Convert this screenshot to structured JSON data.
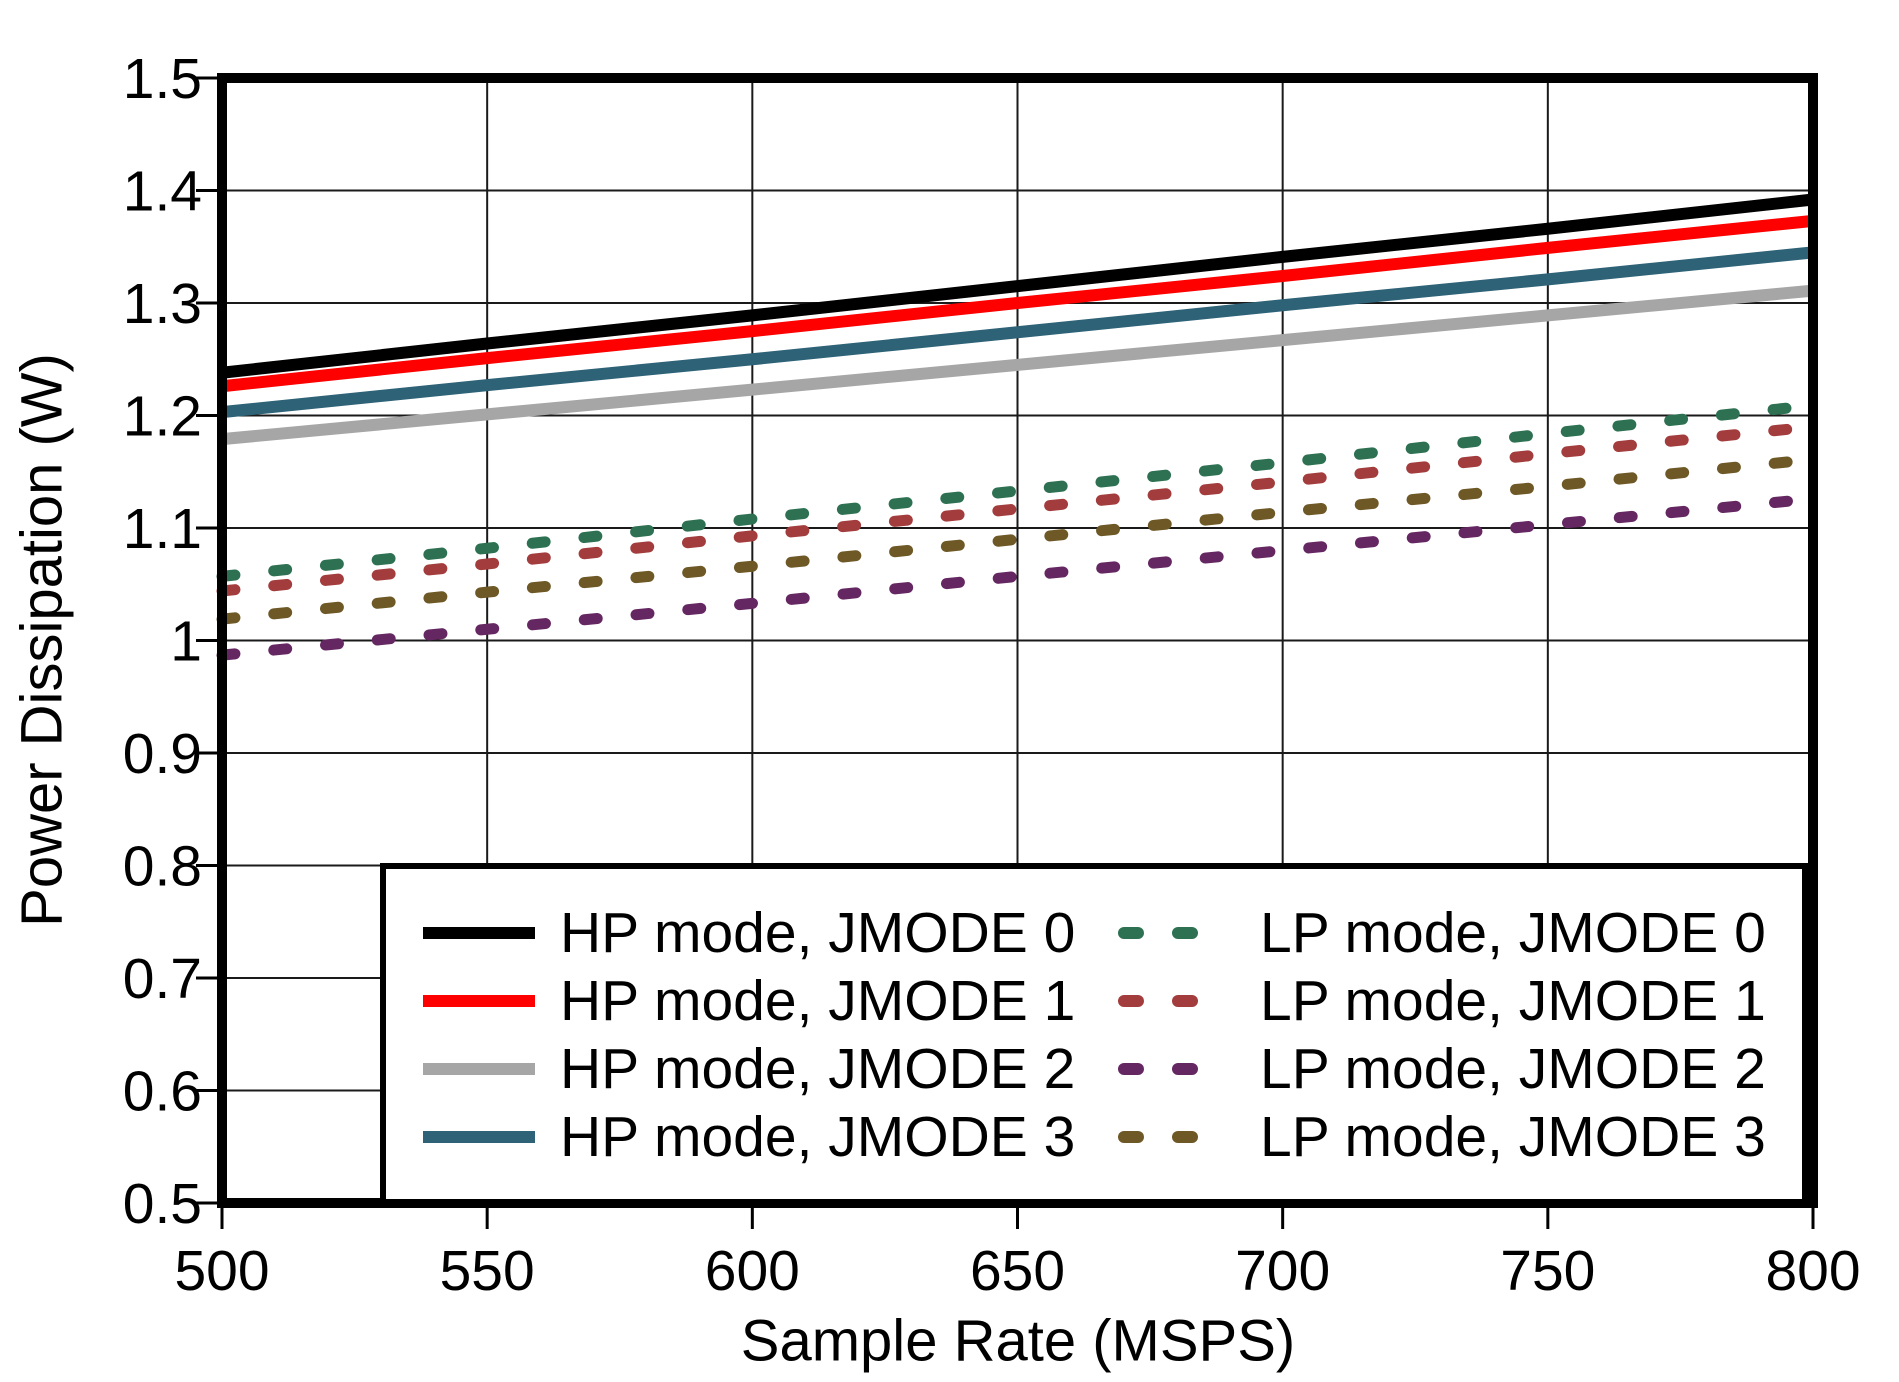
{
  "chart_data": {
    "type": "line",
    "title": "",
    "xlabel": "Sample Rate (MSPS)",
    "ylabel": "Power Dissipation (W)",
    "xlim": [
      500,
      800
    ],
    "ylim": [
      0.5,
      1.5
    ],
    "grid": "on",
    "grid_color": "#1a1a1a",
    "axis_color": "#000000",
    "legend_position": "inside-bottom",
    "x_ticks": [
      500,
      550,
      600,
      650,
      700,
      750,
      800
    ],
    "x_tick_labels": [
      "500",
      "550",
      "600",
      "650",
      "700",
      "750",
      "800"
    ],
    "y_ticks": [
      1.5,
      1.4,
      1.3,
      1.2,
      1.1,
      1.0,
      0.9,
      0.8,
      0.7,
      0.6,
      0.5
    ],
    "y_tick_labels": [
      "1.5",
      "1.4",
      "1.3",
      "1.2",
      "1.1",
      "1",
      "0.9",
      "0.8",
      "0.7",
      "0.6",
      "0.5"
    ],
    "x": [
      500,
      550,
      600,
      650,
      700,
      750,
      800
    ],
    "series": [
      {
        "name": "HP mode, JMODE 0",
        "color": "#000000",
        "style": "solid",
        "values": [
          1.238,
          1.264,
          1.289,
          1.315,
          1.341,
          1.366,
          1.392
        ]
      },
      {
        "name": "HP mode, JMODE 1",
        "color": "#ff0000",
        "style": "solid",
        "values": [
          1.226,
          1.251,
          1.275,
          1.3,
          1.324,
          1.349,
          1.373
        ]
      },
      {
        "name": "HP mode, JMODE 2",
        "color": "#a6a6a6",
        "style": "solid",
        "values": [
          1.179,
          1.201,
          1.223,
          1.245,
          1.267,
          1.289,
          1.311
        ]
      },
      {
        "name": "HP mode, JMODE 3",
        "color": "#2d6277",
        "style": "solid",
        "values": [
          1.203,
          1.227,
          1.25,
          1.274,
          1.298,
          1.321,
          1.345
        ]
      },
      {
        "name": "LP mode, JMODE 0",
        "color": "#2d7152",
        "style": "dashed",
        "values": [
          1.057,
          1.082,
          1.108,
          1.133,
          1.158,
          1.184,
          1.209
        ]
      },
      {
        "name": "LP mode, JMODE 1",
        "color": "#a33c3c",
        "style": "dashed",
        "values": [
          1.044,
          1.068,
          1.093,
          1.117,
          1.141,
          1.166,
          1.19
        ]
      },
      {
        "name": "LP mode, JMODE 2",
        "color": "#652762",
        "style": "dashed",
        "values": [
          0.987,
          1.01,
          1.033,
          1.057,
          1.08,
          1.103,
          1.126
        ]
      },
      {
        "name": "LP mode, JMODE 3",
        "color": "#6d5826",
        "style": "dashed",
        "values": [
          1.019,
          1.043,
          1.066,
          1.09,
          1.114,
          1.137,
          1.161
        ]
      }
    ]
  }
}
